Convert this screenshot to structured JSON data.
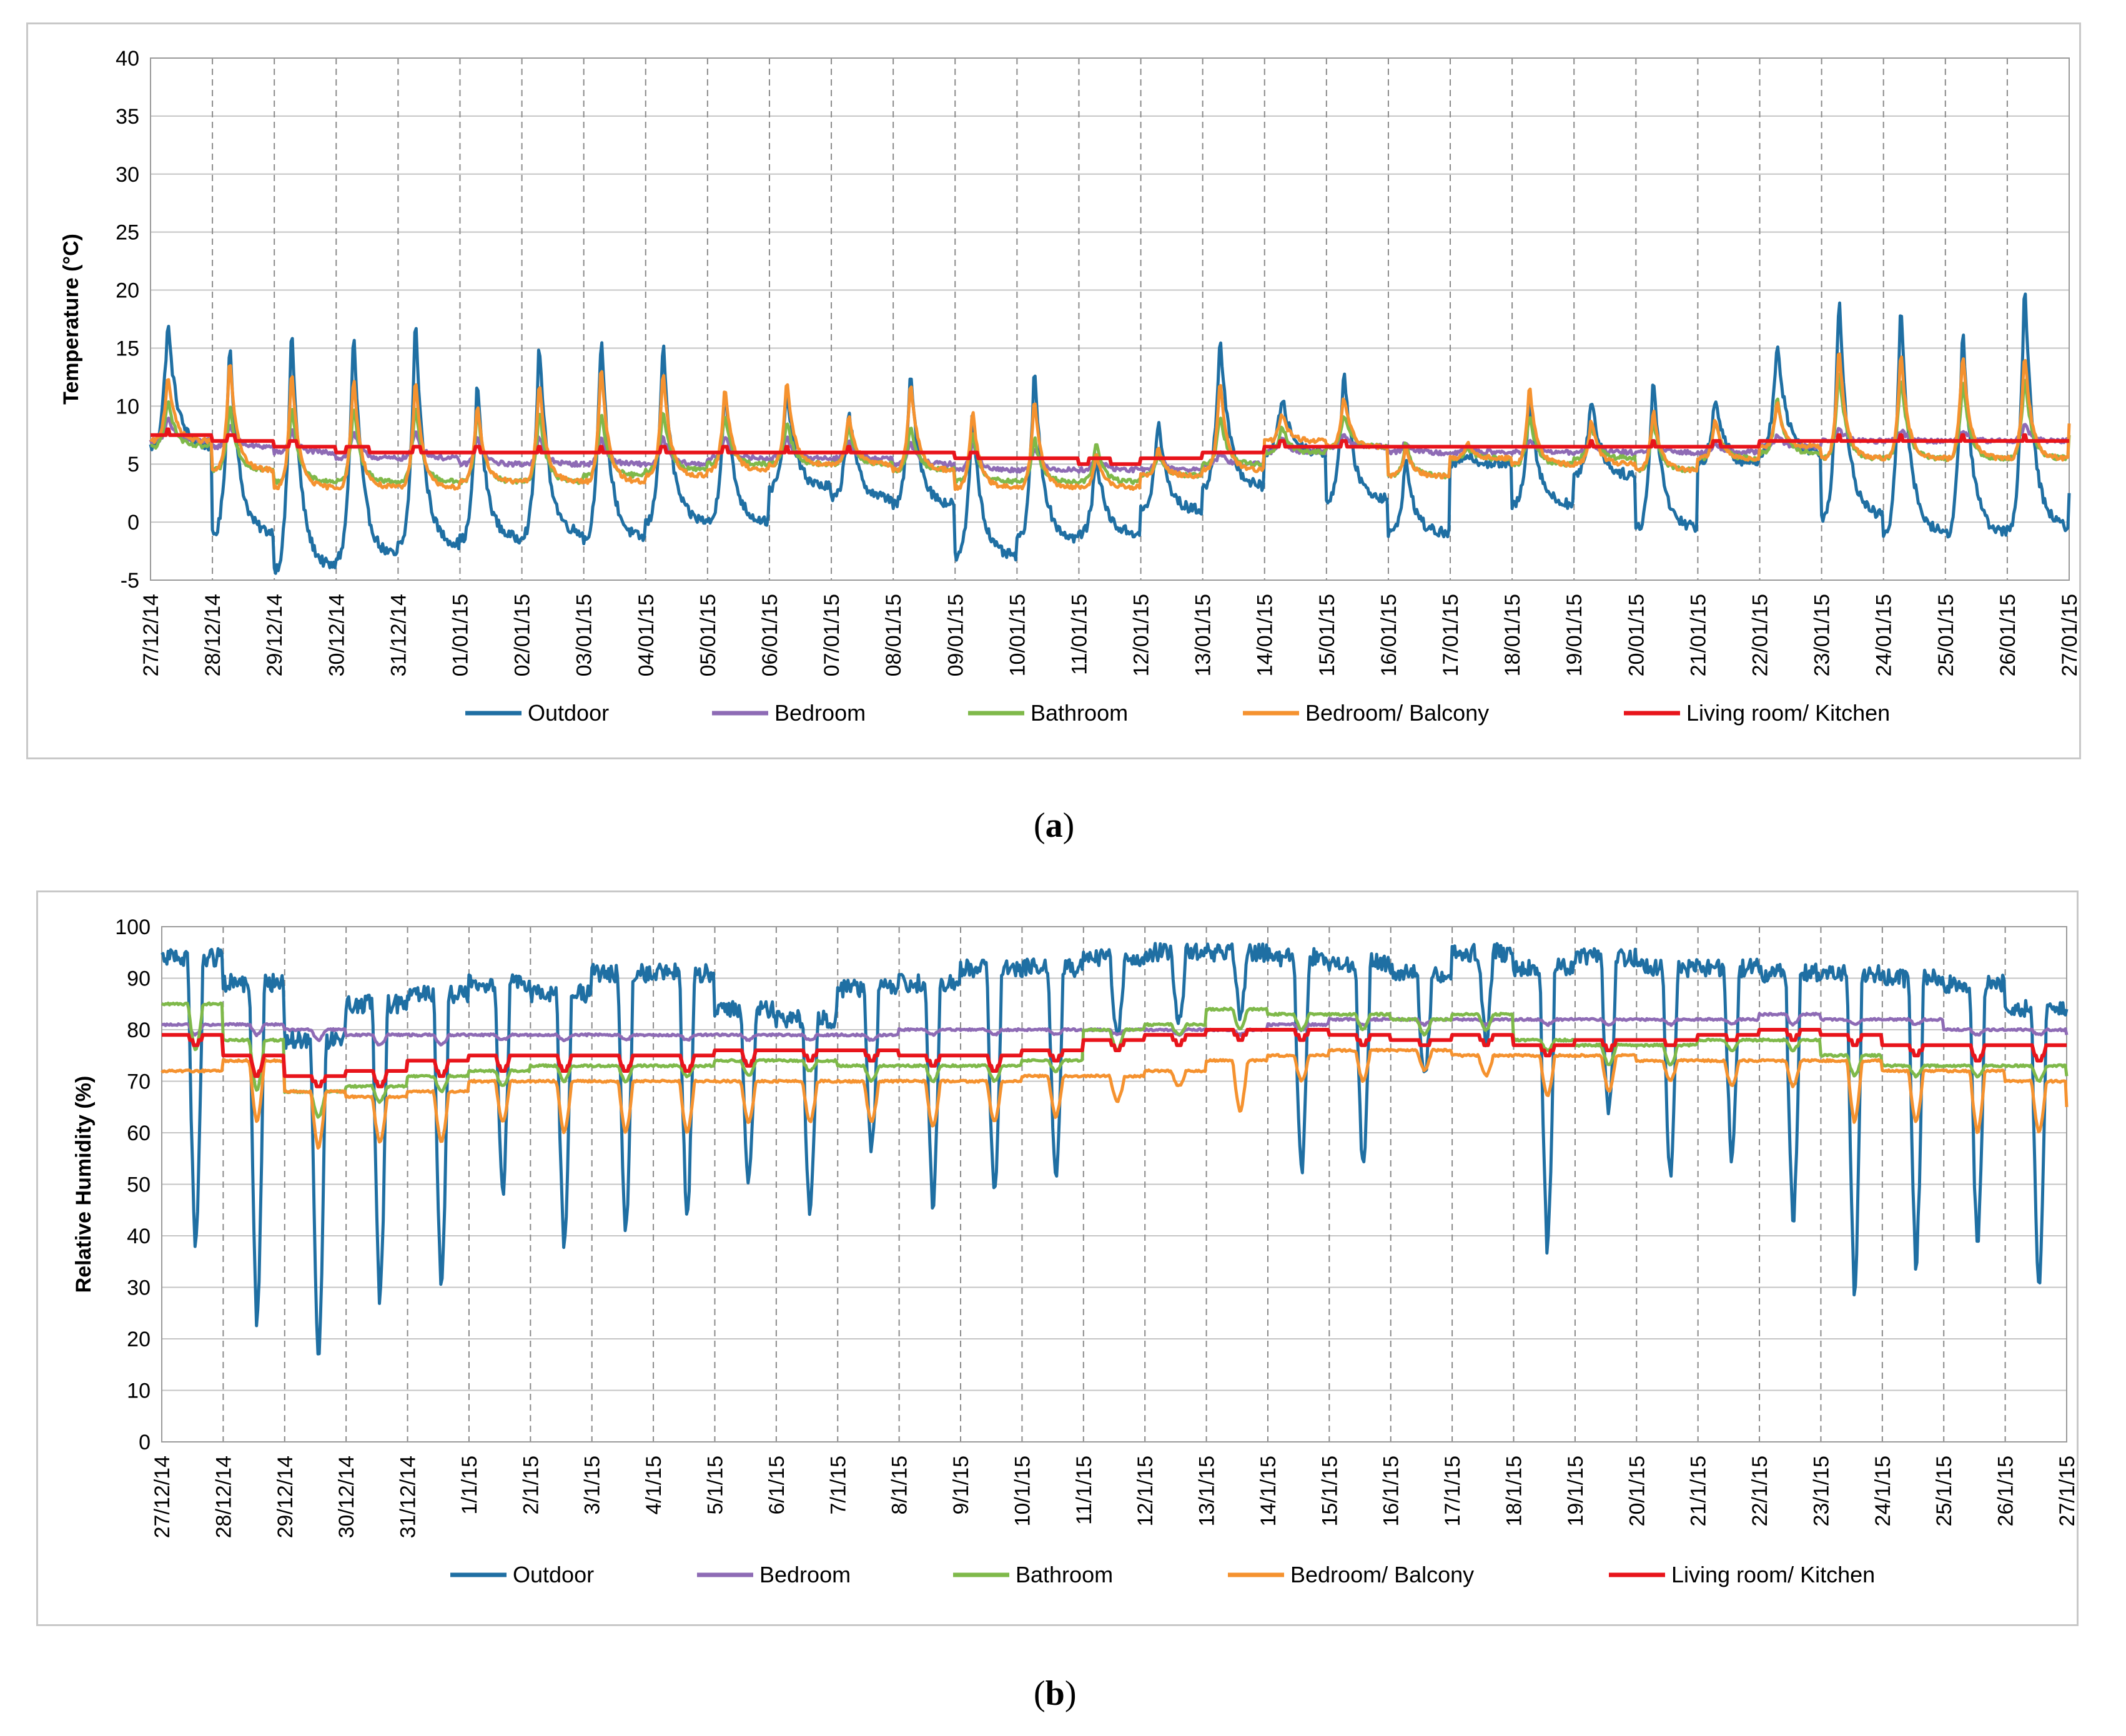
{
  "chart_data": [
    {
      "id": "a",
      "type": "line",
      "caption_letter": "a",
      "ylabel": "Temperature (°C)",
      "xlabel": "",
      "ylim": [
        -5,
        40
      ],
      "yticks": [
        -5,
        0,
        5,
        10,
        15,
        20,
        25,
        30,
        35,
        40
      ],
      "grid": "dashed vertical per day, solid horizontal",
      "legend_position": "bottom",
      "categories": [
        "27/12/14",
        "28/12/14",
        "29/12/14",
        "30/12/14",
        "31/12/14",
        "01/01/15",
        "02/01/15",
        "03/01/15",
        "04/01/15",
        "05/01/15",
        "06/01/15",
        "07/01/15",
        "08/01/15",
        "09/01/15",
        "10/01/15",
        "11/01/15",
        "12/01/15",
        "13/01/15",
        "14/01/15",
        "15/01/15",
        "16/01/15",
        "17/01/15",
        "18/01/15",
        "19/01/15",
        "20/01/15",
        "21/01/15",
        "22/01/15",
        "23/01/15",
        "24/01/15",
        "25/01/15",
        "26/01/15",
        "27/01/15"
      ],
      "series": [
        {
          "name": "Outdoor",
          "color": "#1f6fa3",
          "daily_min": [
            6.5,
            -1,
            -4,
            -3,
            -2,
            -1.5,
            -1,
            -1.5,
            0,
            0,
            3,
            2,
            1.5,
            -3,
            -1.5,
            -1,
            1,
            3,
            6,
            2,
            -1,
            5,
            1.5,
            4,
            -0.5,
            5,
            6,
            0.5,
            -1,
            -1,
            -0.5
          ],
          "daily_max": [
            17.5,
            16,
            17.5,
            17,
            18,
            12.5,
            16,
            16.5,
            16,
            12,
            11.5,
            10,
            13,
            10,
            13.5,
            6,
            9,
            16.5,
            11,
            13.5,
            5.5,
            6,
            11,
            11,
            13,
            11,
            16,
            20,
            19.5,
            17.5,
            21
          ],
          "end_value": 2.5
        },
        {
          "name": "Bedroom",
          "color": "#8e6bb5",
          "daily_min": [
            7,
            6.5,
            6,
            5.5,
            5.5,
            5,
            5,
            5,
            5,
            5.5,
            5.5,
            5.5,
            5,
            4.5,
            4.5,
            4.5,
            4.5,
            5,
            6,
            6.5,
            6,
            6,
            6,
            6,
            6,
            6,
            6.5,
            7,
            7,
            7,
            7
          ],
          "daily_max": [
            9,
            8.5,
            8,
            8,
            8,
            7.5,
            7.5,
            7.5,
            7.5,
            7.5,
            7.5,
            7,
            7,
            7,
            6.5,
            6,
            6,
            6,
            7.5,
            7.5,
            7,
            6.5,
            7,
            7,
            7,
            7,
            7.5,
            8,
            8,
            8,
            8.5
          ],
          "end_value": 7.5
        },
        {
          "name": "Bathroom",
          "color": "#7fb94a",
          "daily_min": [
            6.5,
            4.5,
            3.5,
            3.5,
            3.5,
            3.5,
            3.5,
            4,
            4.5,
            5,
            5,
            5,
            4.5,
            3.5,
            3.5,
            3.5,
            4,
            5,
            6,
            6.5,
            4,
            5.5,
            5,
            5.5,
            4.5,
            5.5,
            6,
            5.5,
            5.5,
            5.5,
            5.5
          ],
          "daily_max": [
            11,
            10.5,
            10.5,
            10.5,
            10.5,
            10,
            10,
            10,
            10,
            9.5,
            9,
            8.5,
            8.5,
            8,
            7.5,
            7,
            6,
            9.5,
            8.5,
            9.5,
            7,
            6.5,
            9.5,
            8.5,
            9,
            9,
            11,
            13.5,
            13,
            12.5,
            13
          ],
          "end_value": 7.5
        },
        {
          "name": "Bedroom/ Balcony",
          "color": "#f5922f",
          "daily_min": [
            7,
            4.5,
            3,
            3,
            3,
            3.5,
            3.5,
            3.5,
            4,
            4.5,
            5,
            5,
            4.5,
            3,
            3,
            3,
            4,
            4.5,
            7,
            6.5,
            4,
            5.5,
            5,
            5,
            4.5,
            5.5,
            6.5,
            5.5,
            5.5,
            5.5,
            5.5
          ],
          "daily_max": [
            13,
            14.5,
            13.5,
            13,
            13,
            10.5,
            12.5,
            14,
            13.5,
            12,
            12.5,
            9.5,
            12.5,
            10,
            11,
            6,
            6.5,
            12.5,
            9.5,
            11,
            6.5,
            7,
            12,
            9,
            10,
            9,
            10.5,
            15.5,
            15,
            15,
            15
          ],
          "end_value": 8.5
        },
        {
          "name": "Living room/ Kitchen",
          "color": "#e8141b",
          "daily_min": [
            7.5,
            7,
            6.5,
            6.2,
            6,
            6,
            6,
            6,
            6,
            6,
            6,
            6,
            5.8,
            5.5,
            5.3,
            5.2,
            5.3,
            5.8,
            6.5,
            6.5,
            6.3,
            6.3,
            6.3,
            6.5,
            6.5,
            6.6,
            6.8,
            7,
            7,
            7,
            7
          ],
          "daily_max": [
            7.8,
            7.5,
            7,
            6.7,
            6.5,
            6.4,
            6.3,
            6.3,
            6.4,
            6.4,
            6.3,
            6.3,
            6.2,
            6,
            5.8,
            5.6,
            5.6,
            6.2,
            6.9,
            6.9,
            6.6,
            6.5,
            6.6,
            6.8,
            6.8,
            6.9,
            7.1,
            7.3,
            7.3,
            7.3,
            7.3
          ],
          "end_value": 7
        }
      ]
    },
    {
      "id": "b",
      "type": "line",
      "caption_letter": "b",
      "ylabel": "Relative Humidity (%)",
      "xlabel": "",
      "ylim": [
        0,
        100
      ],
      "yticks": [
        0,
        10,
        20,
        30,
        40,
        50,
        60,
        70,
        80,
        90,
        100
      ],
      "grid": "dashed vertical per day, solid horizontal",
      "legend_position": "bottom",
      "categories": [
        "27/12/14",
        "28/12/14",
        "29/12/14",
        "30/12/14",
        "31/12/14",
        "1/1/15",
        "2/1/15",
        "3/1/15",
        "4/1/15",
        "5/1/15",
        "6/1/15",
        "7/1/15",
        "8/1/15",
        "9/1/15",
        "10/1/15",
        "11/1/15",
        "12/1/15",
        "13/1/15",
        "14/1/15",
        "15/1/15",
        "16/1/15",
        "17/1/15",
        "18/1/15",
        "19/1/15",
        "20/1/15",
        "21/1/15",
        "22/1/15",
        "23/1/15",
        "24/1/15",
        "25/1/15",
        "26/1/15",
        "27/1/15"
      ],
      "series": [
        {
          "name": "Outdoor",
          "color": "#1f6fa3",
          "daily_min": [
            38,
            22,
            15,
            27,
            30,
            48,
            38,
            40,
            43,
            50,
            44,
            56,
            45,
            47,
            50,
            79,
            81,
            83,
            52,
            53,
            70,
            78,
            37,
            63,
            51,
            55,
            43,
            29,
            34,
            37,
            29
          ],
          "daily_max": [
            94,
            89,
            78,
            85,
            87,
            89,
            87,
            91,
            91,
            84,
            82,
            88,
            89,
            92,
            92,
            94,
            95,
            95,
            94,
            93,
            91,
            95,
            92,
            94,
            92,
            92,
            91,
            91,
            90,
            89,
            84
          ],
          "end_value": 84
        },
        {
          "name": "Bedroom",
          "color": "#8e6bb5",
          "daily_min": [
            79,
            79,
            78,
            77,
            77,
            78,
            78,
            78,
            78,
            78,
            78,
            78,
            79,
            79,
            79,
            79,
            79,
            79,
            80,
            81,
            81,
            81,
            81,
            81,
            81,
            81,
            81,
            81,
            81,
            79,
            79
          ],
          "daily_max": [
            81,
            81,
            80,
            79,
            79,
            79,
            79,
            79,
            79,
            79,
            79,
            79,
            80,
            80,
            80,
            80,
            80,
            80,
            81,
            82,
            82,
            82,
            82,
            82,
            82,
            82,
            83,
            82,
            82,
            80,
            80
          ],
          "end_value": 79
        },
        {
          "name": "Bathroom",
          "color": "#7fb94a",
          "daily_min": [
            76,
            68,
            63,
            66,
            68,
            69,
            70,
            70,
            71,
            71,
            72,
            70,
            70,
            70,
            72,
            76,
            79,
            80,
            80,
            80,
            79,
            80,
            76,
            73,
            73,
            76,
            76,
            71,
            71,
            71,
            70
          ],
          "daily_max": [
            85,
            78,
            68,
            69,
            71,
            72,
            73,
            73,
            73,
            74,
            74,
            73,
            73,
            73,
            74,
            80,
            81,
            84,
            83,
            83,
            82,
            83,
            78,
            77,
            77,
            78,
            78,
            75,
            73,
            73,
            73
          ],
          "end_value": 71
        },
        {
          "name": "Bedroom/ Balcony",
          "color": "#f5922f",
          "daily_min": [
            72,
            62,
            57,
            58,
            58,
            62,
            60,
            60,
            60,
            62,
            62,
            62,
            61,
            62,
            63,
            66,
            69,
            64,
            70,
            70,
            72,
            71,
            67,
            68,
            70,
            69,
            69,
            62,
            62,
            60,
            60
          ],
          "daily_max": [
            72,
            74,
            68,
            67,
            68,
            70,
            70,
            70,
            70,
            70,
            70,
            70,
            70,
            70,
            71,
            71,
            72,
            74,
            75,
            76,
            76,
            75,
            75,
            75,
            74,
            74,
            74,
            74,
            72,
            72,
            70
          ],
          "end_value": 65
        },
        {
          "name": "Living room/ Kitchen",
          "color": "#e8141b",
          "daily_min": [
            77,
            71,
            69,
            69,
            71,
            72,
            72,
            72,
            72,
            73,
            74,
            74,
            73,
            72,
            74,
            76,
            77,
            78,
            78,
            77,
            77,
            77,
            75,
            76,
            77,
            78,
            78,
            77,
            75,
            74,
            74
          ],
          "daily_max": [
            79,
            75,
            71,
            72,
            74,
            75,
            75,
            75,
            75,
            76,
            76,
            76,
            75,
            75,
            76,
            78,
            79,
            80,
            80,
            79,
            78,
            79,
            77,
            78,
            78,
            79,
            80,
            79,
            77,
            77,
            77
          ],
          "end_value": 77
        }
      ]
    }
  ],
  "captions": {
    "a": "a",
    "b": "b"
  }
}
